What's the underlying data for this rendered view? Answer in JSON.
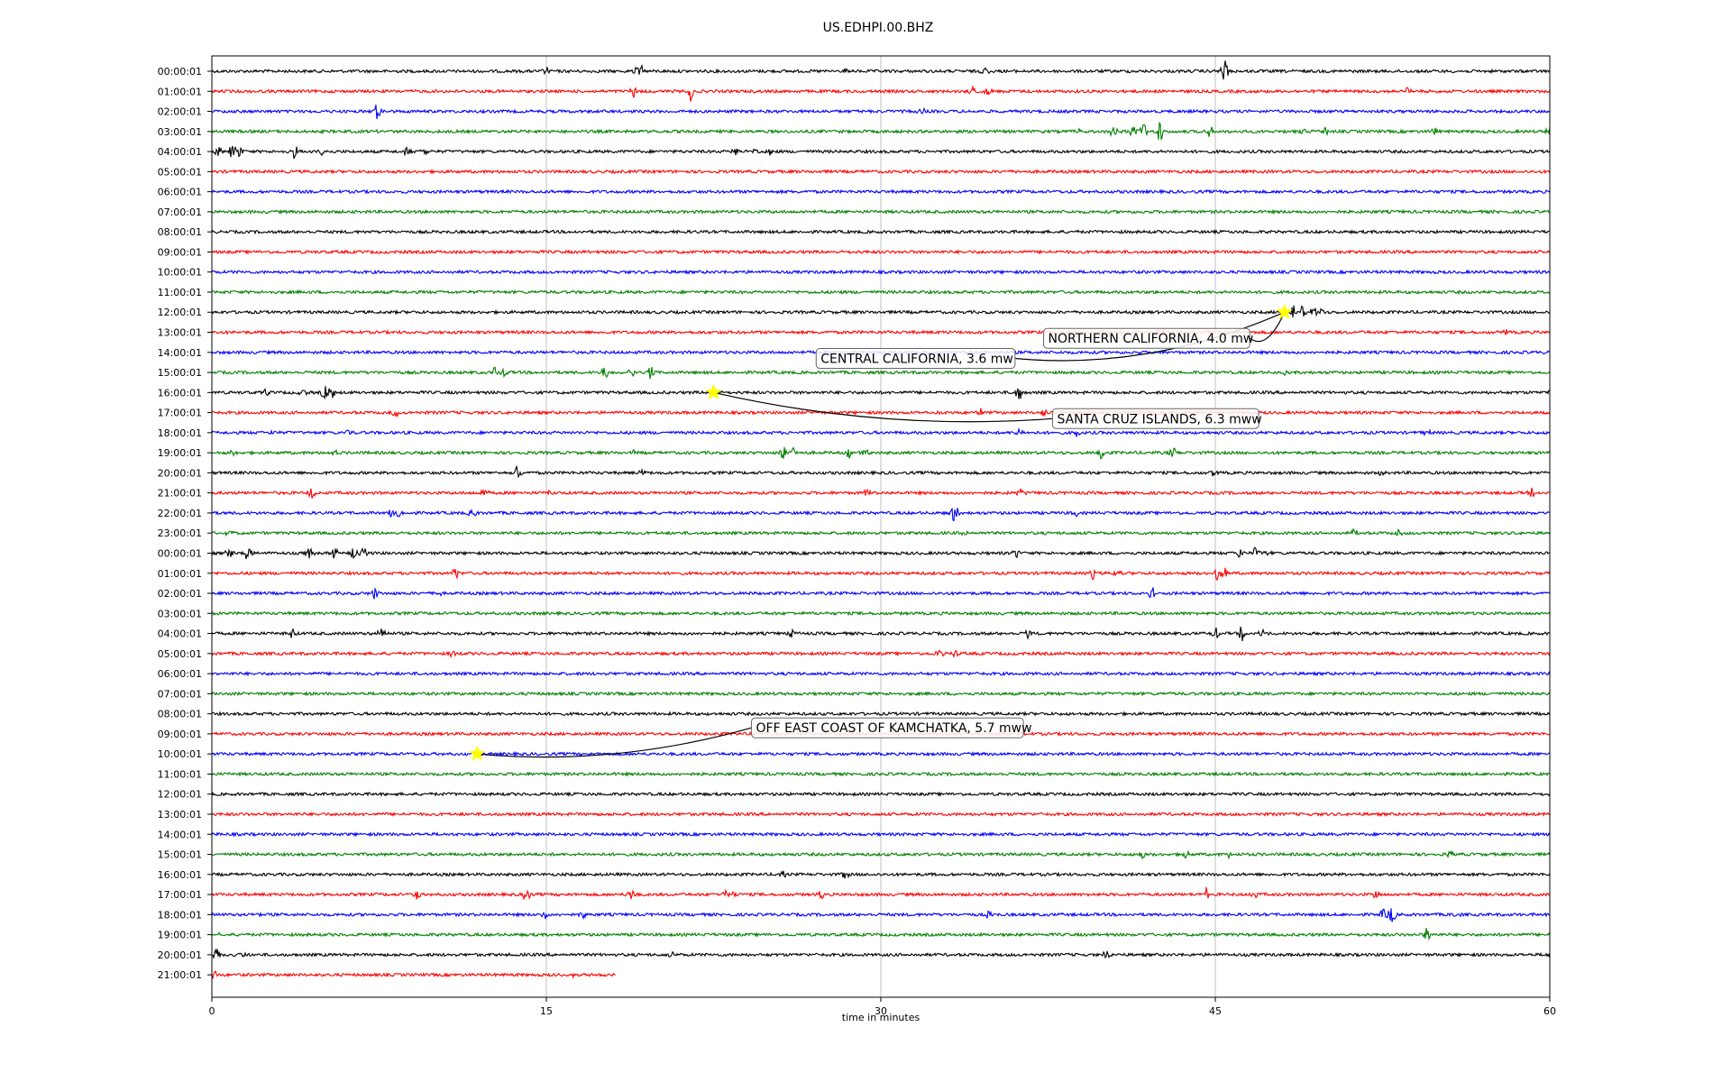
{
  "chart_data": {
    "type": "line",
    "title": "US.EDHPI.00.BHZ",
    "xlabel": "time in minutes",
    "ylabel": "",
    "xlim": [
      0,
      60
    ],
    "x_ticks": [
      0,
      15,
      30,
      45,
      60
    ],
    "grid": "vertical lines at x ticks",
    "trace_colors": [
      "#000000",
      "#ff0000",
      "#0000ff",
      "#008000"
    ],
    "rows": [
      {
        "label": "00:00:01",
        "end": 60,
        "events": [
          [
            19.1,
            0.8
          ],
          [
            19.3,
            0.6
          ],
          [
            45.4,
            1.5
          ],
          [
            15,
            0.5
          ],
          [
            28.4,
            0.4
          ],
          [
            34.7,
            0.5
          ]
        ]
      },
      {
        "label": "01:00:01",
        "end": 60,
        "events": [
          [
            18.9,
            0.9
          ],
          [
            21.5,
            1.2
          ],
          [
            34.1,
            0.6
          ],
          [
            34.8,
            0.4
          ],
          [
            53.6,
            0.5
          ]
        ]
      },
      {
        "label": "02:00:01",
        "end": 60,
        "events": [
          [
            7.4,
            1.0
          ],
          [
            31.8,
            0.4
          ]
        ]
      },
      {
        "label": "03:00:01",
        "end": 60,
        "events": [
          [
            38.9,
            0.5
          ],
          [
            40.4,
            1.2
          ],
          [
            41.3,
            0.9
          ],
          [
            41.8,
            1.1
          ],
          [
            42.5,
            1.3
          ],
          [
            44.7,
            0.9
          ],
          [
            49,
            0.5
          ],
          [
            50,
            0.6
          ],
          [
            54.8,
            0.4
          ],
          [
            60,
            0.6
          ]
        ]
      },
      {
        "label": "04:00:01",
        "end": 60,
        "events": [
          [
            0.3,
            0.6
          ],
          [
            0.9,
            0.8
          ],
          [
            1.2,
            0.7
          ],
          [
            3.7,
            0.8
          ],
          [
            5,
            0.6
          ],
          [
            8.8,
            0.7
          ],
          [
            9.6,
            0.5
          ],
          [
            23.5,
            0.5
          ],
          [
            24.4,
            0.5
          ],
          [
            25,
            0.4
          ]
        ]
      },
      {
        "label": "05:00:01",
        "end": 60,
        "events": []
      },
      {
        "label": "06:00:01",
        "end": 60,
        "events": []
      },
      {
        "label": "07:00:01",
        "end": 60,
        "events": []
      },
      {
        "label": "08:00:01",
        "end": 60,
        "events": []
      },
      {
        "label": "09:00:01",
        "end": 60,
        "events": []
      },
      {
        "label": "10:00:01",
        "end": 60,
        "events": []
      },
      {
        "label": "11:00:01",
        "end": 60,
        "events": []
      },
      {
        "label": "12:00:01",
        "end": 60,
        "events": [
          [
            48.5,
            1.0
          ],
          [
            48.9,
            0.9
          ],
          [
            49.4,
            0.7
          ],
          [
            49.8,
            0.5
          ]
        ]
      },
      {
        "label": "13:00:01",
        "end": 60,
        "events": [
          [
            42.5,
            0.5
          ],
          [
            43,
            0.4
          ],
          [
            58,
            0.4
          ]
        ]
      },
      {
        "label": "14:00:01",
        "end": 60,
        "events": []
      },
      {
        "label": "15:00:01",
        "end": 60,
        "events": [
          [
            12.7,
            0.6
          ],
          [
            13.1,
            0.5
          ],
          [
            17.6,
            0.9
          ],
          [
            18.8,
            0.7
          ],
          [
            19.7,
            0.9
          ],
          [
            48.1,
            0.4
          ]
        ]
      },
      {
        "label": "16:00:01",
        "end": 60,
        "events": [
          [
            2.4,
            0.5
          ],
          [
            4.1,
            0.6
          ],
          [
            5.1,
            1.1
          ],
          [
            5.4,
            0.7
          ],
          [
            36.2,
            1.0
          ],
          [
            60,
            0.6
          ]
        ]
      },
      {
        "label": "17:00:01",
        "end": 60,
        "events": [
          [
            8.2,
            0.6
          ],
          [
            32.5,
            0.4
          ],
          [
            34.5,
            0.4
          ],
          [
            37.3,
            0.5
          ]
        ]
      },
      {
        "label": "18:00:01",
        "end": 60,
        "events": [
          [
            2.7,
            0.3
          ],
          [
            6.1,
            0.3
          ],
          [
            36.2,
            0.4
          ],
          [
            38.8,
            0.4
          ],
          [
            54.5,
            0.4
          ]
        ]
      },
      {
        "label": "19:00:01",
        "end": 60,
        "events": [
          [
            0.9,
            0.4
          ],
          [
            5.5,
            0.4
          ],
          [
            18.9,
            0.5
          ],
          [
            25.6,
            0.8
          ],
          [
            26.1,
            0.6
          ],
          [
            28.6,
            0.6
          ],
          [
            29.3,
            0.5
          ],
          [
            39.9,
            0.8
          ],
          [
            43.1,
            0.6
          ]
        ]
      },
      {
        "label": "20:00:01",
        "end": 60,
        "events": [
          [
            13.7,
            1.1
          ],
          [
            19.3,
            0.4
          ],
          [
            44.9,
            0.5
          ],
          [
            52.4,
            0.4
          ]
        ]
      },
      {
        "label": "21:00:01",
        "end": 60,
        "events": [
          [
            4.5,
            0.7
          ],
          [
            12.2,
            0.6
          ],
          [
            15.2,
            0.5
          ],
          [
            29.4,
            0.6
          ],
          [
            36.3,
            0.6
          ],
          [
            59.2,
            0.5
          ]
        ]
      },
      {
        "label": "22:00:01",
        "end": 60,
        "events": [
          [
            8,
            0.6
          ],
          [
            8.4,
            0.6
          ],
          [
            11.7,
            0.6
          ],
          [
            33.3,
            1.0
          ],
          [
            38.8,
            0.5
          ]
        ]
      },
      {
        "label": "23:00:01",
        "end": 60,
        "events": [
          [
            0.8,
            0.3
          ],
          [
            33.8,
            0.6
          ],
          [
            51.2,
            0.4
          ],
          [
            53.2,
            0.4
          ]
        ]
      },
      {
        "label": "00:00:01",
        "end": 60,
        "events": [
          [
            0.8,
            0.6
          ],
          [
            1.6,
            1.2
          ],
          [
            4.4,
            0.7
          ],
          [
            5.5,
            0.8
          ],
          [
            6.3,
            1.0
          ],
          [
            6.8,
            0.7
          ],
          [
            36.1,
            0.8
          ],
          [
            46.1,
            0.7
          ],
          [
            46.8,
            0.6
          ],
          [
            47.3,
            0.5
          ]
        ]
      },
      {
        "label": "01:00:01",
        "end": 60,
        "events": [
          [
            10.9,
            0.8
          ],
          [
            39.5,
            0.6
          ],
          [
            40.6,
            0.7
          ],
          [
            45.1,
            1.0
          ],
          [
            45.5,
            0.8
          ]
        ]
      },
      {
        "label": "02:00:01",
        "end": 60,
        "events": [
          [
            7.3,
            0.8
          ],
          [
            10.1,
            0.6
          ],
          [
            42.2,
            0.8
          ]
        ]
      },
      {
        "label": "03:00:01",
        "end": 60,
        "events": []
      },
      {
        "label": "04:00:01",
        "end": 60,
        "events": [
          [
            3.6,
            0.6
          ],
          [
            7.6,
            0.8
          ],
          [
            26,
            0.5
          ],
          [
            36.6,
            0.7
          ],
          [
            45,
            0.9
          ],
          [
            46.2,
            0.9
          ],
          [
            47.1,
            0.6
          ]
        ]
      },
      {
        "label": "05:00:01",
        "end": 60,
        "events": [
          [
            10.8,
            0.5
          ],
          [
            32.6,
            0.5
          ],
          [
            33.3,
            0.4
          ]
        ]
      },
      {
        "label": "06:00:01",
        "end": 60,
        "events": []
      },
      {
        "label": "07:00:01",
        "end": 60,
        "events": []
      },
      {
        "label": "08:00:01",
        "end": 60,
        "events": []
      },
      {
        "label": "09:00:01",
        "end": 60,
        "events": []
      },
      {
        "label": "10:00:01",
        "end": 60,
        "events": []
      },
      {
        "label": "11:00:01",
        "end": 60,
        "events": []
      },
      {
        "label": "12:00:01",
        "end": 60,
        "events": []
      },
      {
        "label": "13:00:01",
        "end": 60,
        "events": []
      },
      {
        "label": "14:00:01",
        "end": 60,
        "events": []
      },
      {
        "label": "15:00:01",
        "end": 60,
        "events": [
          [
            41.7,
            0.6
          ],
          [
            43.7,
            0.5
          ],
          [
            45.6,
            0.8
          ],
          [
            55.5,
            0.5
          ]
        ]
      },
      {
        "label": "16:00:01",
        "end": 60,
        "events": [
          [
            25.6,
            0.4
          ],
          [
            28.4,
            0.4
          ]
        ]
      },
      {
        "label": "17:00:01",
        "end": 60,
        "events": [
          [
            9.2,
            0.6
          ],
          [
            14.1,
            0.7
          ],
          [
            18.8,
            0.7
          ],
          [
            23,
            0.5
          ],
          [
            23.3,
            0.6
          ],
          [
            27.3,
            0.5
          ],
          [
            44.6,
            0.7
          ],
          [
            46.8,
            0.5
          ],
          [
            52.2,
            0.5
          ]
        ]
      },
      {
        "label": "18:00:01",
        "end": 60,
        "events": [
          [
            2.1,
            0.4
          ],
          [
            14.9,
            0.6
          ],
          [
            16.6,
            0.5
          ],
          [
            34.8,
            0.5
          ],
          [
            52.5,
            0.6
          ],
          [
            52.9,
            1.1
          ],
          [
            55.8,
            0.4
          ]
        ]
      },
      {
        "label": "19:00:01",
        "end": 60,
        "events": [
          [
            0.2,
            0.5
          ],
          [
            54.5,
            0.9
          ]
        ]
      },
      {
        "label": "20:00:01",
        "end": 60,
        "events": [
          [
            0.2,
            1.2
          ],
          [
            1.4,
            0.6
          ],
          [
            20.6,
            0.4
          ],
          [
            40.1,
            0.5
          ],
          [
            60,
            0.6
          ]
        ]
      },
      {
        "label": "21:00:01",
        "end": 18.1,
        "events": [
          [
            0.15,
            0.8
          ],
          [
            16.2,
            0.4
          ]
        ]
      }
    ],
    "markers": [
      {
        "row": 12,
        "x": 48.1
      },
      {
        "row": 16,
        "x": 22.5
      },
      {
        "row": 34,
        "x": 11.9
      }
    ],
    "annotations": [
      {
        "text": "NORTHERN CALIFORNIA, 4.0 mw",
        "row": 12,
        "x": 48.1,
        "box_x": 37.3,
        "box_row": 13.3
      },
      {
        "text": "CENTRAL CALIFORNIA, 3.6 mw",
        "row": 12,
        "x": 48.1,
        "box_x": 27.1,
        "box_row": 14.3
      },
      {
        "text": "SANTA CRUZ ISLANDS, 6.3 mww",
        "row": 16,
        "x": 22.5,
        "box_x": 37.7,
        "box_row": 17.3
      },
      {
        "text": "OFF EAST COAST OF KAMCHATKA, 5.7 mww",
        "row": 34,
        "x": 11.9,
        "box_x": 24.2,
        "box_row": 32.7
      }
    ]
  }
}
